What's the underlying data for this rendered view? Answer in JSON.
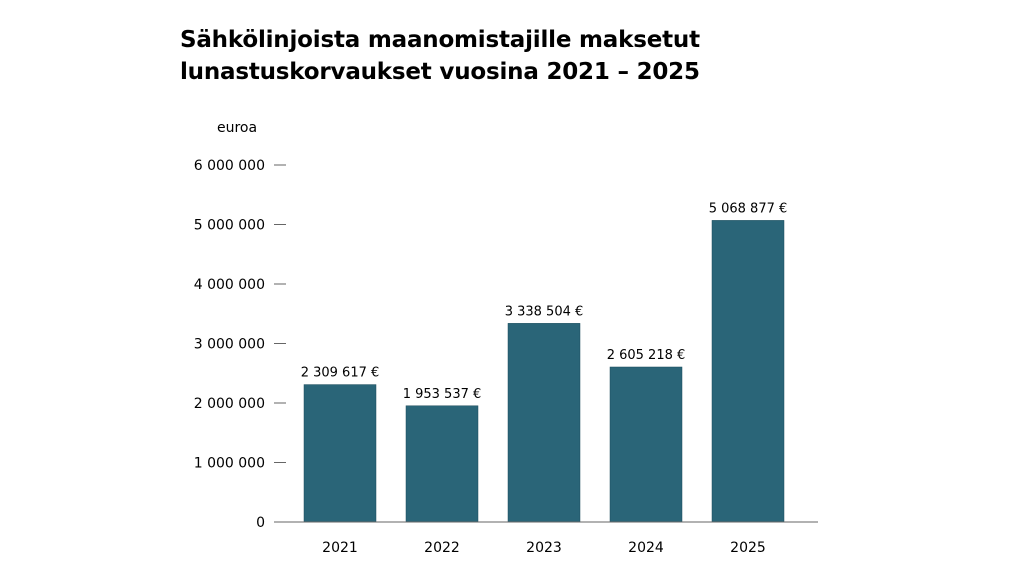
{
  "title_lines": [
    "Sähkölinjoista maanomistajille maksetut",
    "lunastuskorvaukset vuosina 2021 – 2025"
  ],
  "chart_data": {
    "type": "bar",
    "title": "Sähkölinjoista maanomistajille maksetut lunastuskorvaukset vuosina 2021 – 2025",
    "ylabel": "euroa",
    "xlabel": "",
    "categories": [
      "2021",
      "2022",
      "2023",
      "2024",
      "2025"
    ],
    "values": [
      2309617,
      1953537,
      3338504,
      2605218,
      5068877
    ],
    "data_labels": [
      "2 309 617 €",
      "1 953 537 €",
      "3 338 504 €",
      "2 605 218 €",
      "5 068 877 €"
    ],
    "ylim": [
      0,
      6000000
    ],
    "yticks": [
      0,
      1000000,
      2000000,
      3000000,
      4000000,
      5000000,
      6000000
    ],
    "ytick_labels": [
      "0",
      "1 000 000",
      "2 000 000",
      "3 000 000",
      "4 000 000",
      "5 000 000",
      "6 000 000"
    ],
    "grid": false,
    "legend": "none",
    "bar_color": "#2a6578"
  }
}
